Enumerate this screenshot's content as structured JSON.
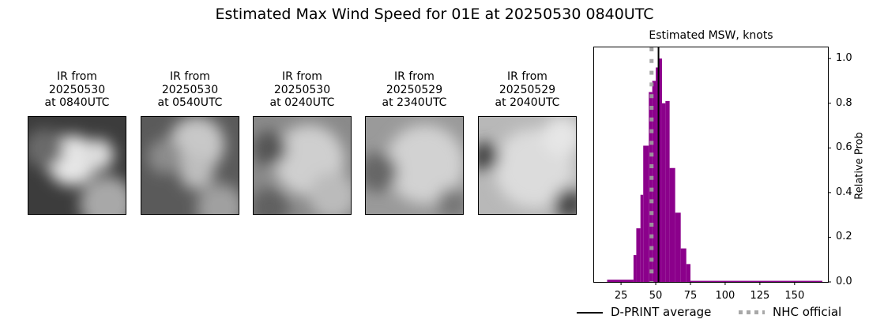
{
  "figure": {
    "suptitle": "Estimated Max Wind Speed for 01E at 20250530 0840UTC"
  },
  "ir_panels": [
    {
      "title": "IR from\n20250530\nat 0840UTC",
      "date": "20250530",
      "time": "0840UTC"
    },
    {
      "title": "IR from\n20250530\nat 0540UTC",
      "date": "20250530",
      "time": "0540UTC"
    },
    {
      "title": "IR from\n20250530\nat 0240UTC",
      "date": "20250530",
      "time": "0240UTC"
    },
    {
      "title": "IR from\n20250529\nat 2340UTC",
      "date": "20250529",
      "time": "2340UTC"
    },
    {
      "title": "IR from\n20250529\nat 2040UTC",
      "date": "20250529",
      "time": "2040UTC"
    }
  ],
  "histogram": {
    "title": "Estimated MSW, knots",
    "ylabel": "Relative Prob",
    "xticks": [
      "25",
      "50",
      "75",
      "100",
      "125",
      "150"
    ],
    "yticks": [
      "0.0",
      "0.2",
      "0.4",
      "0.6",
      "0.8",
      "1.0"
    ],
    "bar_color": "#8b008b",
    "legend": {
      "dprint_label": "D-PRINT average",
      "nhc_label": "NHC official"
    }
  },
  "chart_data": {
    "type": "bar",
    "title": "Estimated MSW, knots",
    "suptitle": "Estimated Max Wind Speed for 01E at 20250530 0840UTC",
    "xlabel": "",
    "ylabel": "Relative Prob",
    "xlim": [
      5.6,
      174
    ],
    "ylim": [
      0,
      1.05
    ],
    "xticks": [
      25,
      50,
      75,
      100,
      125,
      150
    ],
    "yticks": [
      0.0,
      0.2,
      0.4,
      0.6,
      0.8,
      1.0
    ],
    "grid": false,
    "legend_position": "below",
    "bins": [
      {
        "x0": 15,
        "x1": 34,
        "y": 0.01
      },
      {
        "x0": 34,
        "x1": 36,
        "y": 0.12
      },
      {
        "x0": 36,
        "x1": 39,
        "y": 0.24
      },
      {
        "x0": 39,
        "x1": 41,
        "y": 0.39
      },
      {
        "x0": 41,
        "x1": 45,
        "y": 0.61
      },
      {
        "x0": 45,
        "x1": 47.5,
        "y": 0.85
      },
      {
        "x0": 47.5,
        "x1": 50,
        "y": 0.9
      },
      {
        "x0": 50,
        "x1": 52,
        "y": 0.96
      },
      {
        "x0": 52,
        "x1": 54.5,
        "y": 1.0
      },
      {
        "x0": 54.5,
        "x1": 57,
        "y": 0.8
      },
      {
        "x0": 57,
        "x1": 60,
        "y": 0.81
      },
      {
        "x0": 60,
        "x1": 64,
        "y": 0.51
      },
      {
        "x0": 64,
        "x1": 68,
        "y": 0.31
      },
      {
        "x0": 68,
        "x1": 72,
        "y": 0.15
      },
      {
        "x0": 72,
        "x1": 75,
        "y": 0.08
      },
      {
        "x0": 75,
        "x1": 170,
        "y": 0.005
      }
    ],
    "lines": [
      {
        "name": "D-PRINT average",
        "x": 52,
        "style": "solid",
        "color": "#000000"
      },
      {
        "name": "NHC official",
        "x": 47,
        "style": "dotted",
        "color": "#a0a0a0"
      }
    ]
  }
}
